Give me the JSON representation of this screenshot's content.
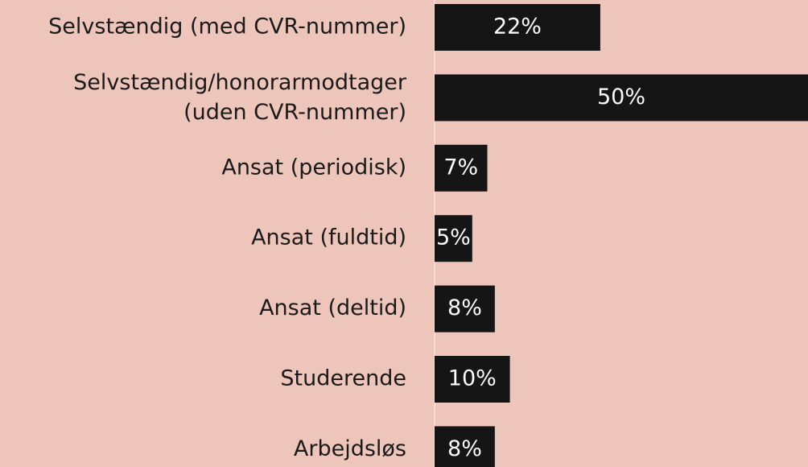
{
  "chart_data": {
    "type": "barh",
    "categories": [
      "Selvstændig (med CVR-nummer)",
      [
        "Selvstændig/honorarmodtager",
        "(uden CVR-nummer)"
      ],
      "Ansat (periodisk)",
      "Ansat (fuldtid)",
      "Ansat (deltid)",
      "Studerende",
      "Arbejdsløs"
    ],
    "values": [
      22,
      50,
      7,
      5,
      8,
      10,
      8
    ],
    "value_labels": [
      "22%",
      "50%",
      "7%",
      "5%",
      "8%",
      "10%",
      "8%"
    ],
    "color": "#151515",
    "xlim": [
      0,
      50
    ]
  }
}
